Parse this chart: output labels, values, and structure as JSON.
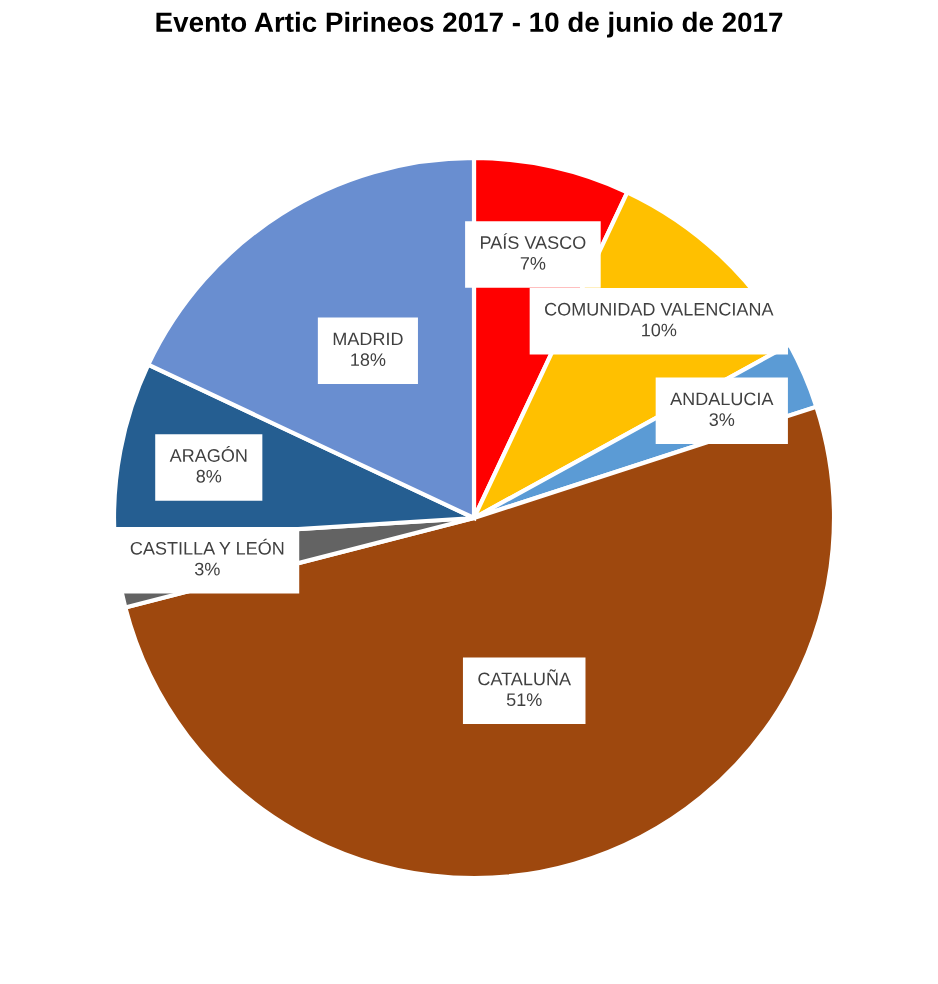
{
  "chart_data": {
    "type": "pie",
    "title": "Evento Artic Pirineos 2017 - 10 de junio de 2017",
    "categories": [
      "PAÍS VASCO",
      "COMUNIDAD VALENCIANA",
      "ANDALUCIA",
      "CATALUÑA",
      "CASTILLA Y LEÓN",
      "ARAGÓN",
      "MADRID"
    ],
    "values": [
      7,
      10,
      3,
      51,
      3,
      8,
      18
    ],
    "value_labels": [
      "7%",
      "10%",
      "3%",
      "51%",
      "3%",
      "8%",
      "18%"
    ],
    "colors": [
      "#ff0000",
      "#ffc000",
      "#5b9bd5",
      "#9e480e",
      "#636363",
      "#255e91",
      "#698ed0"
    ]
  }
}
